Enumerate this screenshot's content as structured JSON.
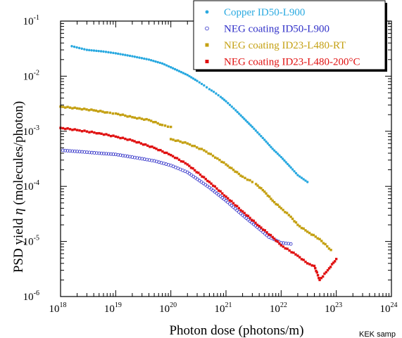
{
  "chart_data": {
    "type": "scatter",
    "xscale": "log",
    "yscale": "log",
    "xlim": [
      1e+18,
      1e+24
    ],
    "ylim": [
      1e-06,
      0.1
    ],
    "xlabel": "Photon dose (photons/m)",
    "ylabel_text": "PSD yield ",
    "ylabel_symbol": "η",
    "ylabel_unit": " (molecules/photon)",
    "x_ticks": [
      {
        "base": "10",
        "exp": "18",
        "value": 1e+18
      },
      {
        "base": "10",
        "exp": "19",
        "value": 1e+19
      },
      {
        "base": "10",
        "exp": "20",
        "value": 1e+20
      },
      {
        "base": "10",
        "exp": "21",
        "value": 1e+21
      },
      {
        "base": "10",
        "exp": "22",
        "value": 1e+22
      },
      {
        "base": "10",
        "exp": "23",
        "value": 1e+23
      },
      {
        "base": "10",
        "exp": "24",
        "value": 1e+24
      }
    ],
    "y_ticks": [
      {
        "base": "10",
        "exp": "-1",
        "value": 0.1
      },
      {
        "base": "10",
        "exp": "-2",
        "value": 0.01
      },
      {
        "base": "10",
        "exp": "-3",
        "value": 0.001
      },
      {
        "base": "10",
        "exp": "-4",
        "value": 0.0001
      },
      {
        "base": "10",
        "exp": "-5",
        "value": 1e-05
      },
      {
        "base": "10",
        "exp": "-6",
        "value": 1e-06
      }
    ],
    "legend_position": "top-right",
    "series": [
      {
        "name": "Copper ID50-L900",
        "color": "#29a9e0",
        "marker": "dot",
        "points": [
          [
            1.6e+18,
            0.035
          ],
          [
            3e+18,
            0.03
          ],
          [
            6e+18,
            0.028
          ],
          [
            1e+19,
            0.026
          ],
          [
            2e+19,
            0.023
          ],
          [
            4e+19,
            0.02
          ],
          [
            7e+19,
            0.017
          ],
          [
            1e+20,
            0.0145
          ],
          [
            2e+20,
            0.0105
          ],
          [
            3e+20,
            0.0082
          ],
          [
            4e+20,
            0.0068
          ],
          [
            5e+20,
            0.0058
          ],
          [
            6e+20,
            0.0052
          ],
          [
            8e+20,
            0.0042
          ],
          [
            1e+21,
            0.0035
          ],
          [
            1.5e+21,
            0.0024
          ],
          [
            2e+21,
            0.0018
          ],
          [
            3e+21,
            0.0012
          ],
          [
            5e+21,
            0.0007
          ],
          [
            7e+21,
            0.00048
          ],
          [
            1e+22,
            0.00034
          ],
          [
            1.5e+22,
            0.00022
          ],
          [
            2e+22,
            0.00016
          ],
          [
            3e+22,
            0.00012
          ]
        ]
      },
      {
        "name": "NEG coating ID50-L900",
        "color": "#3030c8",
        "marker": "open-circle",
        "points": [
          [
            1.1e+18,
            0.00045
          ],
          [
            2e+18,
            0.00043
          ],
          [
            5e+18,
            0.0004
          ],
          [
            1e+19,
            0.00038
          ],
          [
            2e+19,
            0.00034
          ],
          [
            5e+19,
            0.00029
          ],
          [
            1e+20,
            0.00024
          ],
          [
            2e+20,
            0.00018
          ],
          [
            5e+20,
            9.5e-05
          ],
          [
            1e+21,
            5.5e-05
          ],
          [
            2e+21,
            3e-05
          ],
          [
            4e+21,
            1.7e-05
          ],
          [
            6e+21,
            1.2e-05
          ],
          [
            1e+22,
            9.5e-06
          ],
          [
            1.5e+22,
            9e-06
          ]
        ]
      },
      {
        "name": "NEG coating ID23-L480-RT",
        "color": "#c4a012",
        "marker": "square",
        "points": [
          [
            1e+18,
            0.0028
          ],
          [
            2e+18,
            0.0026
          ],
          [
            4e+18,
            0.0024
          ],
          [
            7e+18,
            0.0022
          ],
          [
            1e+19,
            0.0021
          ],
          [
            2e+19,
            0.0018
          ],
          [
            4e+19,
            0.0016
          ],
          [
            7e+19,
            0.0013
          ],
          [
            1e+20,
            0.0012
          ],
          [
            1e+20,
            0.00072
          ],
          [
            2e+20,
            0.0006
          ],
          [
            4e+20,
            0.00045
          ],
          [
            7e+20,
            0.00032
          ],
          [
            1e+21,
            0.00025
          ],
          [
            2e+21,
            0.00015
          ],
          [
            3e+21,
            0.00012
          ],
          [
            3.5e+21,
            0.00011
          ],
          [
            5e+21,
            8e-05
          ],
          [
            7e+21,
            5.5e-05
          ],
          [
            1e+22,
            4e-05
          ],
          [
            1.5e+22,
            2.8e-05
          ],
          [
            2e+22,
            2e-05
          ],
          [
            3e+22,
            1.5e-05
          ],
          [
            5e+22,
            1.1e-05
          ],
          [
            8e+22,
            7e-06
          ]
        ]
      },
      {
        "name": "NEG coating ID23-L480-200°C",
        "color": "#e01010",
        "marker": "square",
        "points": [
          [
            1e+18,
            0.00115
          ],
          [
            2e+18,
            0.00105
          ],
          [
            5e+18,
            0.00092
          ],
          [
            1e+19,
            0.0008
          ],
          [
            2e+19,
            0.00068
          ],
          [
            5e+19,
            0.0005
          ],
          [
            1e+20,
            0.00037
          ],
          [
            2e+20,
            0.00025
          ],
          [
            5e+20,
            0.00012
          ],
          [
            1e+21,
            6.5e-05
          ],
          [
            2e+21,
            3.5e-05
          ],
          [
            4e+21,
            1.9e-05
          ],
          [
            7e+21,
            1.2e-05
          ],
          [
            1e+22,
            8.5e-06
          ],
          [
            2e+22,
            5.5e-06
          ],
          [
            3e+22,
            4e-06
          ],
          [
            4e+22,
            3.6e-06
          ],
          [
            5e+22,
            2e-06
          ],
          [
            7e+22,
            3e-06
          ],
          [
            1e+23,
            4.8e-06
          ]
        ]
      }
    ]
  },
  "footer": {
    "credit": "KEK samp"
  }
}
